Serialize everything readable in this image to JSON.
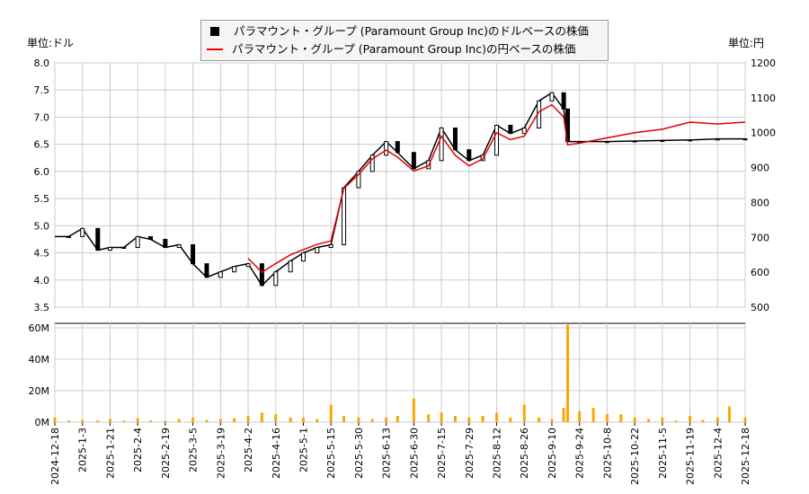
{
  "chart_data": [
    {
      "type": "line",
      "panel": "price",
      "left_unit_label": "単位:ドル",
      "right_unit_label": "単位:円",
      "legend": [
        "パラマウント・グループ (Paramount Group Inc)のドルベースの株価",
        "パラマウント・グループ (Paramount Group Inc)の円ベースの株価"
      ],
      "legend_placement": "top-center",
      "ylim_left": [
        3.5,
        8.0
      ],
      "ylim_right": [
        500,
        1200
      ],
      "yticks_left": [
        "8.0",
        "7.5",
        "7.0",
        "6.5",
        "6.0",
        "5.5",
        "5.0",
        "4.5",
        "4.0",
        "3.5"
      ],
      "yticks_right": [
        "1200",
        "1100",
        "1000",
        "900",
        "800",
        "700",
        "600",
        "500"
      ],
      "xticks": [
        "2024-12-18",
        "2025-1-3",
        "2025-1-21",
        "2025-2-4",
        "2025-2-19",
        "2025-3-5",
        "2025-3-19",
        "2025-4-2",
        "2025-4-16",
        "2025-5-1",
        "2025-5-15",
        "2025-5-30",
        "2025-6-13",
        "2025-6-30",
        "2025-7-15",
        "2025-7-29",
        "2025-8-12",
        "2025-8-26",
        "2025-9-10",
        "2025-9-24",
        "2025-10-8",
        "2025-10-22",
        "2025-11-5",
        "2025-11-19",
        "2025-12-4",
        "2025-12-18"
      ],
      "grid": true,
      "colors": {
        "usd": "#000000",
        "jpy": "#e00000"
      },
      "series": [
        {
          "name": "パラマウント・グループ (Paramount Group Inc)のドルベースの株価",
          "axis": "left",
          "style": "candlestick",
          "points": [
            [
              "2024-12-18",
              4.8
            ],
            [
              "2024-12-26",
              4.8
            ],
            [
              "2025-01-03",
              4.95
            ],
            [
              "2025-01-13",
              4.55
            ],
            [
              "2025-01-21",
              4.6
            ],
            [
              "2025-01-28",
              4.6
            ],
            [
              "2025-02-04",
              4.8
            ],
            [
              "2025-02-11",
              4.75
            ],
            [
              "2025-02-19",
              4.6
            ],
            [
              "2025-02-26",
              4.65
            ],
            [
              "2025-03-05",
              4.3
            ],
            [
              "2025-03-12",
              4.05
            ],
            [
              "2025-03-19",
              4.15
            ],
            [
              "2025-03-26",
              4.25
            ],
            [
              "2025-04-02",
              4.3
            ],
            [
              "2025-04-09",
              3.9
            ],
            [
              "2025-04-16",
              4.15
            ],
            [
              "2025-04-24",
              4.35
            ],
            [
              "2025-05-01",
              4.5
            ],
            [
              "2025-05-08",
              4.6
            ],
            [
              "2025-05-15",
              4.65
            ],
            [
              "2025-05-22",
              5.7
            ],
            [
              "2025-05-30",
              6.0
            ],
            [
              "2025-06-06",
              6.3
            ],
            [
              "2025-06-13",
              6.55
            ],
            [
              "2025-06-20",
              6.35
            ],
            [
              "2025-06-30",
              6.05
            ],
            [
              "2025-07-08",
              6.2
            ],
            [
              "2025-07-15",
              6.8
            ],
            [
              "2025-07-22",
              6.4
            ],
            [
              "2025-07-29",
              6.2
            ],
            [
              "2025-08-05",
              6.3
            ],
            [
              "2025-08-12",
              6.85
            ],
            [
              "2025-08-19",
              6.7
            ],
            [
              "2025-08-26",
              6.8
            ],
            [
              "2025-09-03",
              7.3
            ],
            [
              "2025-09-10",
              7.45
            ],
            [
              "2025-09-16",
              7.15
            ],
            [
              "2025-09-18",
              6.55
            ],
            [
              "2025-09-24",
              6.55
            ],
            [
              "2025-10-08",
              6.55
            ],
            [
              "2025-10-22",
              6.56
            ],
            [
              "2025-11-05",
              6.57
            ],
            [
              "2025-11-19",
              6.58
            ],
            [
              "2025-12-04",
              6.6
            ],
            [
              "2025-12-18",
              6.6
            ]
          ]
        },
        {
          "name": "パラマウント・グループ (Paramount Group Inc)の円ベースの株価",
          "axis": "right",
          "style": "line",
          "points": [
            [
              "2025-04-02",
              640
            ],
            [
              "2025-04-09",
              600
            ],
            [
              "2025-04-16",
              625
            ],
            [
              "2025-04-24",
              650
            ],
            [
              "2025-05-01",
              665
            ],
            [
              "2025-05-08",
              680
            ],
            [
              "2025-05-15",
              690
            ],
            [
              "2025-05-22",
              840
            ],
            [
              "2025-05-30",
              880
            ],
            [
              "2025-06-06",
              925
            ],
            [
              "2025-06-13",
              950
            ],
            [
              "2025-06-20",
              930
            ],
            [
              "2025-06-30",
              890
            ],
            [
              "2025-07-08",
              905
            ],
            [
              "2025-07-15",
              990
            ],
            [
              "2025-07-22",
              935
            ],
            [
              "2025-07-29",
              905
            ],
            [
              "2025-08-05",
              925
            ],
            [
              "2025-08-12",
              1000
            ],
            [
              "2025-08-19",
              980
            ],
            [
              "2025-08-26",
              990
            ],
            [
              "2025-09-03",
              1060
            ],
            [
              "2025-09-10",
              1080
            ],
            [
              "2025-09-16",
              1045
            ],
            [
              "2025-09-18",
              965
            ],
            [
              "2025-09-24",
              970
            ],
            [
              "2025-10-08",
              985
            ],
            [
              "2025-10-22",
              1000
            ],
            [
              "2025-11-05",
              1010
            ],
            [
              "2025-11-19",
              1030
            ],
            [
              "2025-12-04",
              1025
            ],
            [
              "2025-12-18",
              1030
            ]
          ]
        }
      ]
    },
    {
      "type": "bar",
      "panel": "volume",
      "ylim": [
        0,
        62
      ],
      "yticks": [
        "60M",
        "40M",
        "20M",
        "0M"
      ],
      "color": "#ffa500",
      "points": [
        [
          "2024-12-18",
          3
        ],
        [
          "2024-12-26",
          1
        ],
        [
          "2025-01-03",
          1.5
        ],
        [
          "2025-01-13",
          1
        ],
        [
          "2025-01-21",
          2
        ],
        [
          "2025-01-28",
          1
        ],
        [
          "2025-02-04",
          2.5
        ],
        [
          "2025-02-11",
          1
        ],
        [
          "2025-02-19",
          0.8
        ],
        [
          "2025-02-26",
          2
        ],
        [
          "2025-03-05",
          3
        ],
        [
          "2025-03-12",
          1.5
        ],
        [
          "2025-03-19",
          2
        ],
        [
          "2025-03-26",
          2.5
        ],
        [
          "2025-04-02",
          4
        ],
        [
          "2025-04-09",
          6
        ],
        [
          "2025-04-16",
          5
        ],
        [
          "2025-04-24",
          3
        ],
        [
          "2025-05-01",
          3
        ],
        [
          "2025-05-08",
          2
        ],
        [
          "2025-05-15",
          11
        ],
        [
          "2025-05-22",
          4
        ],
        [
          "2025-05-30",
          3
        ],
        [
          "2025-06-06",
          2
        ],
        [
          "2025-06-13",
          3
        ],
        [
          "2025-06-20",
          4
        ],
        [
          "2025-06-30",
          15
        ],
        [
          "2025-07-08",
          5
        ],
        [
          "2025-07-15",
          6
        ],
        [
          "2025-07-22",
          4
        ],
        [
          "2025-07-29",
          3
        ],
        [
          "2025-08-05",
          4
        ],
        [
          "2025-08-12",
          6
        ],
        [
          "2025-08-19",
          3
        ],
        [
          "2025-08-26",
          11
        ],
        [
          "2025-09-03",
          3
        ],
        [
          "2025-09-10",
          2
        ],
        [
          "2025-09-16",
          9
        ],
        [
          "2025-09-18",
          62
        ],
        [
          "2025-09-24",
          7
        ],
        [
          "2025-10-01",
          9
        ],
        [
          "2025-10-08",
          5
        ],
        [
          "2025-10-15",
          5
        ],
        [
          "2025-10-22",
          3
        ],
        [
          "2025-10-29",
          2
        ],
        [
          "2025-11-05",
          3
        ],
        [
          "2025-11-12",
          1
        ],
        [
          "2025-11-19",
          4
        ],
        [
          "2025-11-26",
          1.5
        ],
        [
          "2025-12-04",
          3
        ],
        [
          "2025-12-10",
          10
        ],
        [
          "2025-12-18",
          3
        ]
      ]
    }
  ]
}
